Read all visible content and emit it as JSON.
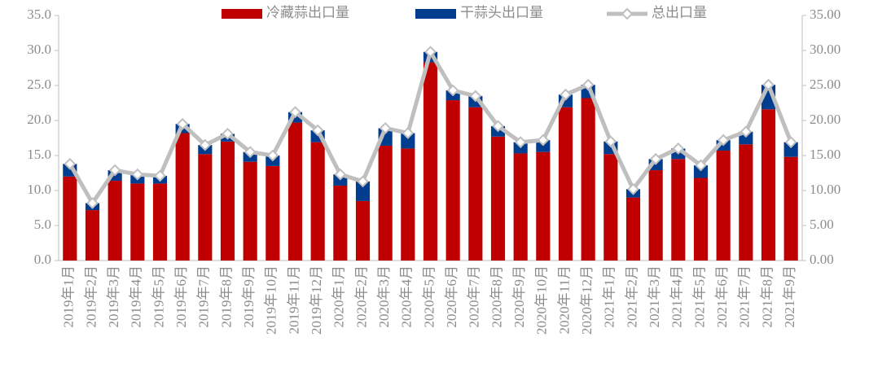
{
  "chart_data": {
    "type": "bar",
    "categories": [
      "2019年1月",
      "2019年2月",
      "2019年3月",
      "2019年4月",
      "2019年5月",
      "2019年6月",
      "2019年7月",
      "2019年8月",
      "2019年9月",
      "2019年10月",
      "2019年11月",
      "2019年12月",
      "2020年1月",
      "2020年2月",
      "2020年3月",
      "2020年4月",
      "2020年5月",
      "2020年6月",
      "2020年7月",
      "2020年8月",
      "2020年9月",
      "2020年10月",
      "2020年11月",
      "2020年12月",
      "2021年1月",
      "2021年2月",
      "2021年3月",
      "2021年4月",
      "2021年5月",
      "2021年6月",
      "2021年7月",
      "2021年8月",
      "2021年9月"
    ],
    "series": [
      {
        "name": "冷藏蒜出口量",
        "color": "#c00000",
        "values": [
          12.0,
          7.2,
          11.4,
          11.0,
          11.0,
          18.2,
          15.2,
          17.0,
          14.1,
          13.5,
          19.7,
          16.9,
          10.7,
          8.5,
          16.4,
          16.0,
          28.3,
          22.9,
          21.9,
          17.7,
          15.3,
          15.5,
          21.9,
          23.2,
          15.2,
          9.0,
          12.9,
          14.5,
          11.8,
          15.7,
          16.6,
          21.6,
          14.8
        ]
      },
      {
        "name": "干蒜头出口量",
        "color": "#003d8f",
        "values": [
          1.8,
          1.0,
          1.5,
          1.3,
          1.1,
          1.3,
          1.3,
          1.1,
          1.4,
          1.5,
          1.5,
          1.7,
          1.6,
          2.8,
          2.5,
          2.2,
          1.5,
          1.4,
          1.6,
          1.5,
          1.6,
          1.7,
          1.8,
          1.9,
          1.8,
          1.2,
          1.6,
          1.5,
          1.8,
          1.5,
          1.8,
          3.5,
          2.1
        ]
      },
      {
        "name": "总出口量",
        "color": "#bfbfbf",
        "axis": "y2",
        "values": [
          13.8,
          8.2,
          12.9,
          12.3,
          12.1,
          19.5,
          16.5,
          18.1,
          15.5,
          15.0,
          21.2,
          18.6,
          12.3,
          11.3,
          18.9,
          18.2,
          29.8,
          24.3,
          23.5,
          19.2,
          16.9,
          17.2,
          23.7,
          25.1,
          17.0,
          10.2,
          14.5,
          16.0,
          13.6,
          17.2,
          18.4,
          25.1,
          16.9
        ]
      }
    ],
    "ylim": [
      0,
      35
    ],
    "yticks": [
      {
        "value": 0,
        "label": "0.0"
      },
      {
        "value": 5,
        "label": "5.0"
      },
      {
        "value": 10,
        "label": "10.0"
      },
      {
        "value": 15,
        "label": "15.0"
      },
      {
        "value": 20,
        "label": "20.0"
      },
      {
        "value": 25,
        "label": "25.0"
      },
      {
        "value": 30,
        "label": "30.0"
      },
      {
        "value": 35,
        "label": "35.0"
      }
    ],
    "y2lim": [
      0,
      35
    ],
    "y2ticks": [
      {
        "value": 0,
        "label": "0.00"
      },
      {
        "value": 5,
        "label": "5.00"
      },
      {
        "value": 10,
        "label": "10.00"
      },
      {
        "value": 15,
        "label": "15.00"
      },
      {
        "value": 20,
        "label": "20.00"
      },
      {
        "value": 25,
        "label": "25.00"
      },
      {
        "value": 30,
        "label": "30.00"
      },
      {
        "value": 35,
        "label": "35.00"
      }
    ],
    "legend": "top"
  }
}
